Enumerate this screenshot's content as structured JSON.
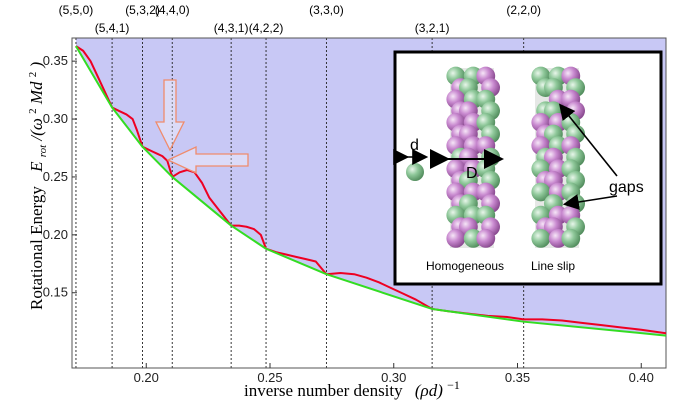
{
  "chart_data": {
    "type": "line",
    "title": "",
    "xlabel_main": "inverse number density",
    "xlabel_math": "(ρd)",
    "xlabel_exp": "−1",
    "ylabel_main": "Rotational Energy",
    "ylabel_math_prefix": "E",
    "ylabel_math_sub": "rot",
    "ylabel_math_mid": "/(ω",
    "ylabel_math_sup1": "2",
    "ylabel_math_md": "Md",
    "ylabel_math_sup2": "2",
    "ylabel_math_close": ")",
    "xlim": [
      0.17,
      0.41
    ],
    "ylim": [
      0.085,
      0.37
    ],
    "x_ticks": [
      {
        "v": 0.2,
        "label": "0.20"
      },
      {
        "v": 0.25,
        "label": "0.25"
      },
      {
        "v": 0.3,
        "label": "0.30"
      },
      {
        "v": 0.35,
        "label": "0.35"
      },
      {
        "v": 0.4,
        "label": "0.40"
      }
    ],
    "y_ticks": [
      {
        "v": 0.15,
        "label": "0.15"
      },
      {
        "v": 0.2,
        "label": "0.20"
      },
      {
        "v": 0.25,
        "label": "0.25"
      },
      {
        "v": 0.3,
        "label": "0.30"
      },
      {
        "v": 0.35,
        "label": "0.35"
      }
    ],
    "structures": [
      {
        "x": 0.1716,
        "label": "(5,5,0)"
      },
      {
        "x": 0.1862,
        "label": "(5,4,1)"
      },
      {
        "x": 0.1985,
        "label": "(5,3,2)"
      },
      {
        "x": 0.2105,
        "label": "(4,4,0)"
      },
      {
        "x": 0.2343,
        "label": "(4,3,1)"
      },
      {
        "x": 0.2484,
        "label": "(4,2,2)"
      },
      {
        "x": 0.2728,
        "label": "(3,3,0)"
      },
      {
        "x": 0.3155,
        "label": "(3,2,1)"
      },
      {
        "x": 0.3525,
        "label": "(2,2,0)"
      }
    ],
    "series": [
      {
        "color": "#ee0022",
        "x": [
          0.1716,
          0.1745,
          0.1775,
          0.181,
          0.1862,
          0.189,
          0.192,
          0.1945,
          0.1963,
          0.1985,
          0.2005,
          0.2025,
          0.2045,
          0.2065,
          0.2085,
          0.2105,
          0.2135,
          0.2165,
          0.2195,
          0.2225,
          0.2255,
          0.2343,
          0.2375,
          0.2405,
          0.2435,
          0.2463,
          0.2484,
          0.2525,
          0.2565,
          0.2605,
          0.2645,
          0.2685,
          0.2728,
          0.2785,
          0.284,
          0.289,
          0.294,
          0.299,
          0.304,
          0.309,
          0.3155,
          0.322,
          0.33,
          0.338,
          0.346,
          0.3525,
          0.36,
          0.368,
          0.376,
          0.384,
          0.392,
          0.4,
          0.41
        ],
        "y": [
          0.363,
          0.359,
          0.35,
          0.334,
          0.31,
          0.307,
          0.304,
          0.3,
          0.29,
          0.276,
          0.274,
          0.272,
          0.27,
          0.268,
          0.264,
          0.25,
          0.254,
          0.256,
          0.254,
          0.245,
          0.232,
          0.208,
          0.208,
          0.207,
          0.205,
          0.2,
          0.188,
          0.185,
          0.183,
          0.181,
          0.179,
          0.177,
          0.166,
          0.167,
          0.166,
          0.163,
          0.159,
          0.154,
          0.149,
          0.144,
          0.136,
          0.134,
          0.132,
          0.13,
          0.129,
          0.127,
          0.127,
          0.126,
          0.124,
          0.122,
          0.12,
          0.118,
          0.115
        ]
      },
      {
        "color": "#33dd22",
        "x": [
          0.1716,
          0.1862,
          0.1985,
          0.2105,
          0.2343,
          0.2484,
          0.2728,
          0.3155,
          0.3525,
          0.41
        ],
        "y": [
          0.363,
          0.31,
          0.276,
          0.25,
          0.208,
          0.188,
          0.166,
          0.136,
          0.125,
          0.113
        ]
      }
    ],
    "inset": {
      "scale_d": "d",
      "scale_D": "D",
      "left_caption": "Homogeneous",
      "right_caption": "Line slip",
      "gaps_label": "gaps"
    },
    "colors": {
      "background_fill": "#c8c8f5",
      "sphere_green": "#8fc89a",
      "sphere_pink": "#c98ad0",
      "arrow_outline": "#f08c6c"
    }
  }
}
